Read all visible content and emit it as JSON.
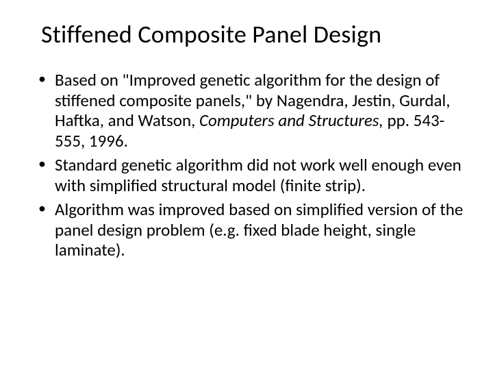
{
  "slide": {
    "title": "Stiffened Composite Panel Design",
    "bullets": [
      {
        "pre": "Based on \"Improved genetic algorithm for the design of stiffened composite panels,\" by Nagendra, Jestin, Gurdal, Haftka, and Watson, ",
        "italic": "Computers and Structures, ",
        "post": "pp. 543-555, 1996."
      },
      {
        "pre": "Standard genetic algorithm did not work well enough even with simplified structural model (finite strip).",
        "italic": "",
        "post": ""
      },
      {
        "pre": "Algorithm was improved based on simplified version of the panel design problem (e.g. fixed blade height, single laminate).",
        "italic": "",
        "post": ""
      }
    ],
    "colors": {
      "background": "#ffffff",
      "text": "#000000"
    },
    "typography": {
      "title_fontsize": 36,
      "body_fontsize": 25,
      "font_family": "Calibri"
    }
  }
}
